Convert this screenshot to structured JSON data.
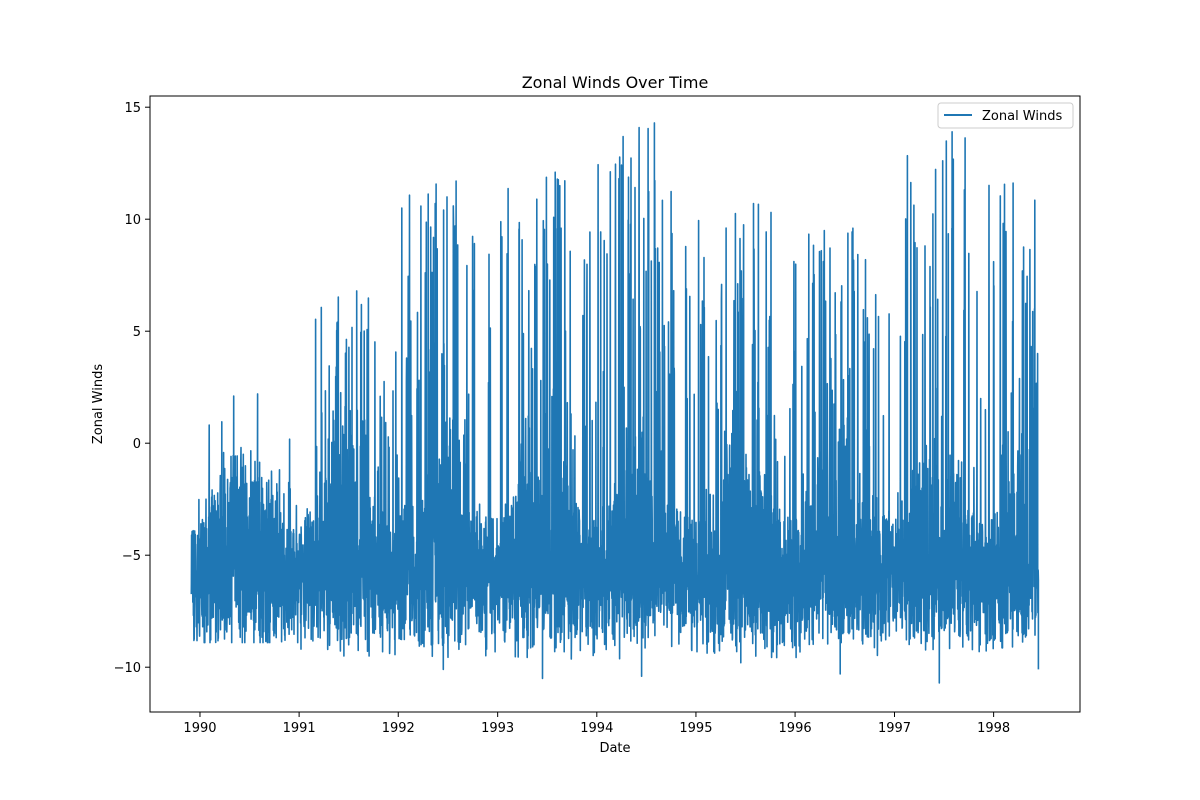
{
  "chart_data": {
    "type": "line",
    "title": "Zonal Winds Over Time",
    "xlabel": "Date",
    "ylabel": "Zonal Winds",
    "x_range": [
      "1989-11-30",
      "1998-06-15"
    ],
    "xlim": [
      "1989-07-01",
      "1998-11-15"
    ],
    "ylim": [
      -12,
      15.5
    ],
    "x_ticks": [
      "1990",
      "1991",
      "1992",
      "1993",
      "1994",
      "1995",
      "1996",
      "1997",
      "1998"
    ],
    "y_ticks": [
      -10,
      -5,
      0,
      5,
      10,
      15
    ],
    "grid": false,
    "legend": {
      "position": "top-right",
      "entries": [
        "Zonal Winds"
      ]
    },
    "series": [
      {
        "name": "Zonal Winds",
        "color": "#1f77b4",
        "approx_summary": [
          {
            "period": "1990",
            "min": -8.9,
            "max": 2.2
          },
          {
            "period": "1991",
            "min": -9.5,
            "max": 6.8
          },
          {
            "period": "1992",
            "min": -10.1,
            "max": 11.7
          },
          {
            "period": "1993",
            "min": -10.5,
            "max": 12.1
          },
          {
            "period": "1994",
            "min": -10.4,
            "max": 14.3
          },
          {
            "period": "1995",
            "min": -9.8,
            "max": 10.7
          },
          {
            "period": "1996",
            "min": -10.3,
            "max": 9.6
          },
          {
            "period": "1997",
            "min": -10.7,
            "max": 13.9
          },
          {
            "period": "1998",
            "min": -10.1,
            "max": 12.1
          }
        ]
      }
    ]
  }
}
